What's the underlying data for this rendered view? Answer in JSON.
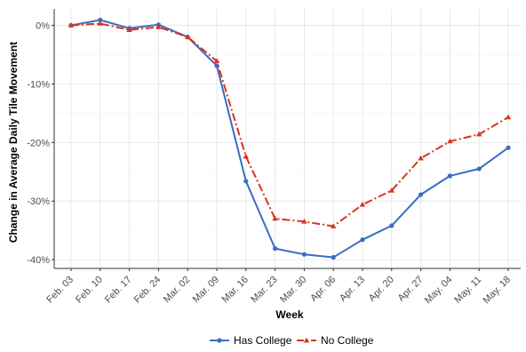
{
  "chart_data": {
    "type": "line",
    "xlabel": "Week",
    "ylabel": "Change in Average Daily Tile Movement",
    "categories": [
      "Feb. 03",
      "Feb. 10",
      "Feb. 17",
      "Feb. 24",
      "Mar. 02",
      "Mar. 09",
      "Mar. 16",
      "Mar. 23",
      "Mar. 30",
      "Apr. 06",
      "Apr. 13",
      "Apr. 20",
      "Apr. 27",
      "May. 04",
      "May. 11",
      "May. 18"
    ],
    "yticks": [
      0,
      -10,
      -20,
      -30,
      -40
    ],
    "ytick_labels": [
      "0%",
      "-10%",
      "-20%",
      "-30%",
      "-40%"
    ],
    "ylim": [
      -41.5,
      2.8
    ],
    "grid": true,
    "legend_position": "bottom",
    "series": [
      {
        "name": "Has College",
        "color": "#3a6cc6",
        "style": "solid",
        "marker": "circle",
        "values": [
          0,
          0.9,
          -0.5,
          0.1,
          -2.0,
          -6.9,
          -26.6,
          -38.1,
          -39.1,
          -39.6,
          -36.6,
          -34.2,
          -28.9,
          -25.7,
          -24.5,
          -20.9
        ]
      },
      {
        "name": "No College",
        "color": "#d9341f",
        "style": "dashdot",
        "marker": "triangle",
        "values": [
          0,
          0.3,
          -0.8,
          -0.3,
          -2.0,
          -6.1,
          -22.4,
          -33.0,
          -33.5,
          -34.3,
          -30.6,
          -28.2,
          -22.7,
          -19.8,
          -18.6,
          -15.7
        ]
      }
    ]
  }
}
